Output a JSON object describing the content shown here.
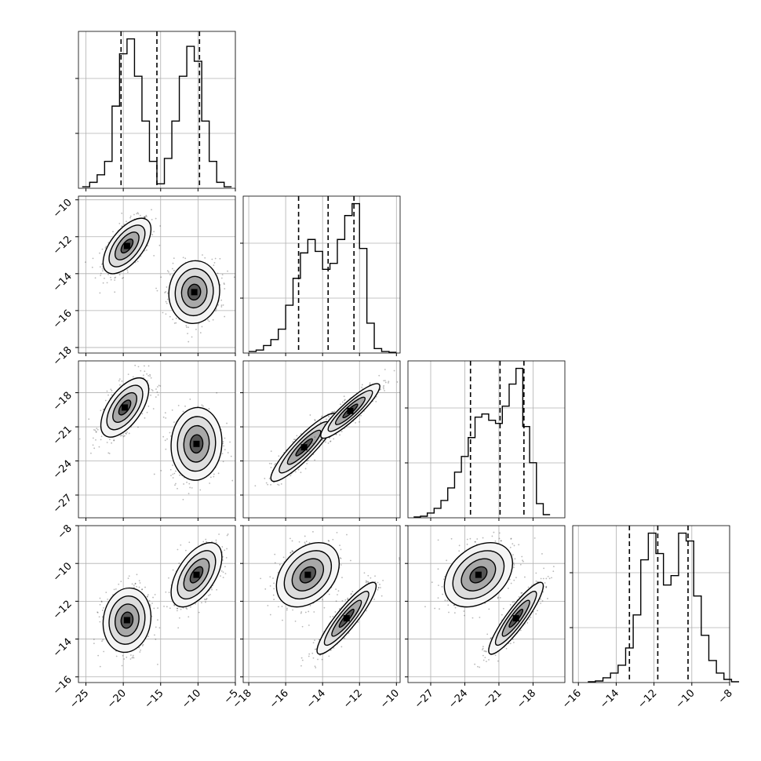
{
  "chart_data": {
    "type": "corner",
    "title": "",
    "parameters": [
      {
        "label": "",
        "range": [
          -26,
          -5
        ],
        "ticks": [
          -25,
          -20,
          -15,
          -10,
          -5
        ],
        "quantiles": [
          -20.3,
          -15.5,
          -9.8
        ]
      },
      {
        "label": "",
        "range": [
          -18.3,
          -9.8
        ],
        "ticks": [
          -18,
          -16,
          -14,
          -12,
          -10
        ],
        "quantiles": [
          -15.3,
          -13.7,
          -12.3
        ]
      },
      {
        "label": "",
        "range": [
          -29,
          -15.2
        ],
        "ticks": [
          -27,
          -24,
          -21,
          -18
        ],
        "quantiles": [
          -23.5,
          -20.9,
          -18.8
        ]
      },
      {
        "label": "",
        "range": [
          -16.3,
          -8
        ],
        "ticks": [
          -16,
          -14,
          -12,
          -10,
          -8
        ],
        "quantiles": [
          -13.3,
          -11.8,
          -10.2
        ]
      }
    ],
    "histograms": [
      {
        "parameter": 0,
        "bin_edges": [
          -25.5,
          -24.5,
          -23.5,
          -22.5,
          -21.5,
          -20.5,
          -19.5,
          -18.5,
          -17.5,
          -16.5,
          -15.5,
          -14.5,
          -13.5,
          -12.5,
          -11.5,
          -10.5,
          -9.5,
          -8.5,
          -7.5,
          -6.5,
          -5.5
        ],
        "counts": [
          0.01,
          0.04,
          0.09,
          0.18,
          0.55,
          0.9,
          1.0,
          0.75,
          0.45,
          0.18,
          0.03,
          0.2,
          0.45,
          0.75,
          0.95,
          0.85,
          0.45,
          0.18,
          0.04,
          0.01
        ]
      },
      {
        "parameter": 1,
        "bin_edges": [
          -18.0,
          -17.6,
          -17.2,
          -16.8,
          -16.4,
          -16.0,
          -15.6,
          -15.2,
          -14.8,
          -14.4,
          -14.0,
          -13.6,
          -13.2,
          -12.8,
          -12.4,
          -12.0,
          -11.6,
          -11.2,
          -10.8,
          -10.4,
          -10.0
        ],
        "counts": [
          0.01,
          0.02,
          0.05,
          0.09,
          0.16,
          0.32,
          0.5,
          0.67,
          0.76,
          0.68,
          0.56,
          0.6,
          0.76,
          0.92,
          1.0,
          0.7,
          0.2,
          0.03,
          0.01,
          0.005
        ]
      },
      {
        "parameter": 2,
        "bin_edges": [
          -28.5,
          -27.9,
          -27.3,
          -26.7,
          -26.1,
          -25.5,
          -24.9,
          -24.3,
          -23.7,
          -23.1,
          -22.5,
          -21.9,
          -21.3,
          -20.7,
          -20.1,
          -19.5,
          -18.9,
          -18.3,
          -17.7,
          -17.1,
          -16.5
        ],
        "counts": [
          0.005,
          0.01,
          0.03,
          0.06,
          0.11,
          0.19,
          0.29,
          0.39,
          0.51,
          0.64,
          0.66,
          0.62,
          0.6,
          0.71,
          0.85,
          0.95,
          0.58,
          0.35,
          0.09,
          0.02
        ]
      },
      {
        "parameter": 3,
        "bin_edges": [
          -15.5,
          -15.1,
          -14.7,
          -14.3,
          -13.9,
          -13.5,
          -13.1,
          -12.7,
          -12.3,
          -11.9,
          -11.5,
          -11.1,
          -10.7,
          -10.3,
          -9.9,
          -9.5,
          -9.1,
          -8.7,
          -8.3,
          -7.9,
          -7.5
        ],
        "counts": [
          0.005,
          0.01,
          0.03,
          0.06,
          0.11,
          0.22,
          0.43,
          0.78,
          0.95,
          0.82,
          0.62,
          0.68,
          0.95,
          0.9,
          0.55,
          0.3,
          0.14,
          0.06,
          0.02,
          0.005
        ]
      }
    ],
    "pairs": [
      {
        "x": 0,
        "y": 1,
        "clusters": [
          {
            "center": [
              -19.5,
              -12.5
            ],
            "sx": 1.6,
            "sy": 0.75,
            "rho": 0.6,
            "n": 520
          },
          {
            "center": [
              -10.5,
              -15.0
            ],
            "sx": 1.7,
            "sy": 0.85,
            "rho": 0.05,
            "n": 520
          }
        ]
      },
      {
        "x": 0,
        "y": 2,
        "clusters": [
          {
            "center": [
              -19.8,
              -19.3
            ],
            "sx": 1.6,
            "sy": 1.3,
            "rho": 0.6,
            "n": 520
          },
          {
            "center": [
              -10.2,
              -22.5
            ],
            "sx": 1.7,
            "sy": 1.6,
            "rho": 0.05,
            "n": 520
          }
        ]
      },
      {
        "x": 1,
        "y": 2,
        "clusters": [
          {
            "center": [
              -15.0,
              -22.8
            ],
            "sx": 0.9,
            "sy": 1.5,
            "rho": 0.9,
            "n": 520
          },
          {
            "center": [
              -12.5,
              -19.6
            ],
            "sx": 0.8,
            "sy": 1.2,
            "rho": 0.9,
            "n": 520
          }
        ]
      },
      {
        "x": 0,
        "y": 3,
        "clusters": [
          {
            "center": [
              -19.5,
              -13.0
            ],
            "sx": 1.6,
            "sy": 0.85,
            "rho": 0.1,
            "n": 520
          },
          {
            "center": [
              -10.2,
              -10.6
            ],
            "sx": 1.7,
            "sy": 0.85,
            "rho": 0.55,
            "n": 520
          }
        ]
      },
      {
        "x": 1,
        "y": 3,
        "clusters": [
          {
            "center": [
              -14.8,
              -10.6
            ],
            "sx": 0.85,
            "sy": 0.85,
            "rho": 0.35,
            "n": 520
          },
          {
            "center": [
              -12.7,
              -12.9
            ],
            "sx": 0.8,
            "sy": 0.95,
            "rho": 0.9,
            "n": 520
          }
        ]
      },
      {
        "x": 2,
        "y": 3,
        "clusters": [
          {
            "center": [
              -22.8,
              -10.6
            ],
            "sx": 1.5,
            "sy": 0.85,
            "rho": 0.35,
            "n": 520
          },
          {
            "center": [
              -19.5,
              -12.9
            ],
            "sx": 1.2,
            "sy": 0.95,
            "rho": 0.9,
            "n": 520
          }
        ]
      }
    ],
    "quantile_levels": [
      0.16,
      0.5,
      0.84
    ],
    "contour_levels": [
      0.5,
      1.0,
      1.5,
      2.0
    ],
    "grid": true,
    "colors": {
      "points": "#000000",
      "lines": "#000000",
      "grid": "#b0b0b0",
      "frame": "#000000"
    }
  }
}
